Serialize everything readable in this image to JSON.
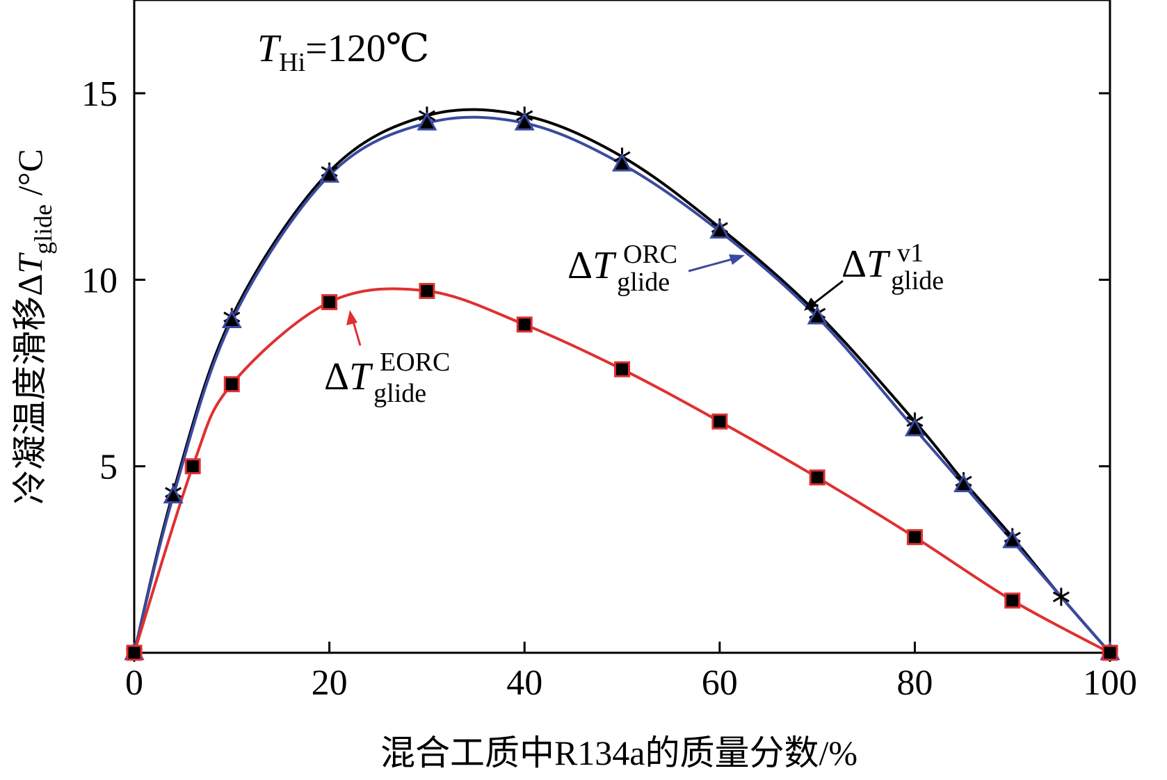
{
  "chart_data": {
    "type": "line",
    "title": "",
    "xlabel": "混合工质中R134a的质量分数/%",
    "ylabel": {
      "prefix": "冷凝温度滑移",
      "delta": "Δ",
      "var": "T",
      "sub": "glide",
      "unit": " /°C"
    },
    "xlim": [
      0,
      100
    ],
    "ylim": [
      0,
      17.5
    ],
    "xticks": [
      0,
      20,
      40,
      60,
      80,
      100
    ],
    "yticks": [
      5,
      10,
      15
    ],
    "condition": {
      "var": "T",
      "sub": "Hi",
      "value": "=120℃"
    },
    "grid": false,
    "series": [
      {
        "key": "v1",
        "label_delta": "Δ",
        "label_var": "T",
        "label_sub": "glide",
        "label_sup": "v1",
        "color": "#000000",
        "marker": "asterisk",
        "x": [
          0,
          4,
          10,
          20,
          30,
          40,
          50,
          60,
          70,
          80,
          85,
          90,
          95,
          100
        ],
        "y": [
          0,
          4.3,
          9.0,
          12.9,
          14.4,
          14.4,
          13.3,
          11.4,
          9.1,
          6.2,
          4.6,
          3.1,
          1.5,
          0
        ]
      },
      {
        "key": "ORC",
        "label_delta": "Δ",
        "label_var": "T",
        "label_sub": "glide",
        "label_sup": "ORC",
        "color": "#3b4aa0",
        "marker": "triangle",
        "x": [
          0,
          4,
          10,
          20,
          30,
          40,
          50,
          60,
          70,
          80,
          85,
          90,
          100
        ],
        "y": [
          0,
          4.2,
          8.9,
          12.8,
          14.2,
          14.2,
          13.1,
          11.3,
          9.0,
          6.0,
          4.5,
          3.0,
          0
        ]
      },
      {
        "key": "EORC",
        "label_delta": "Δ",
        "label_var": "T",
        "label_sub": "glide",
        "label_sup": "EORC",
        "color": "#e03030",
        "marker": "square",
        "x": [
          0,
          6,
          10,
          20,
          30,
          40,
          50,
          60,
          70,
          80,
          90,
          100
        ],
        "y": [
          0,
          5.0,
          7.2,
          9.4,
          9.7,
          8.8,
          7.6,
          6.2,
          4.7,
          3.1,
          1.4,
          0
        ]
      }
    ],
    "annotations": [
      {
        "series": "ORC",
        "arrow_color": "#3b4aa0"
      },
      {
        "series": "v1",
        "arrow_color": "#000000"
      },
      {
        "series": "EORC",
        "arrow_color": "#e03030"
      }
    ]
  }
}
